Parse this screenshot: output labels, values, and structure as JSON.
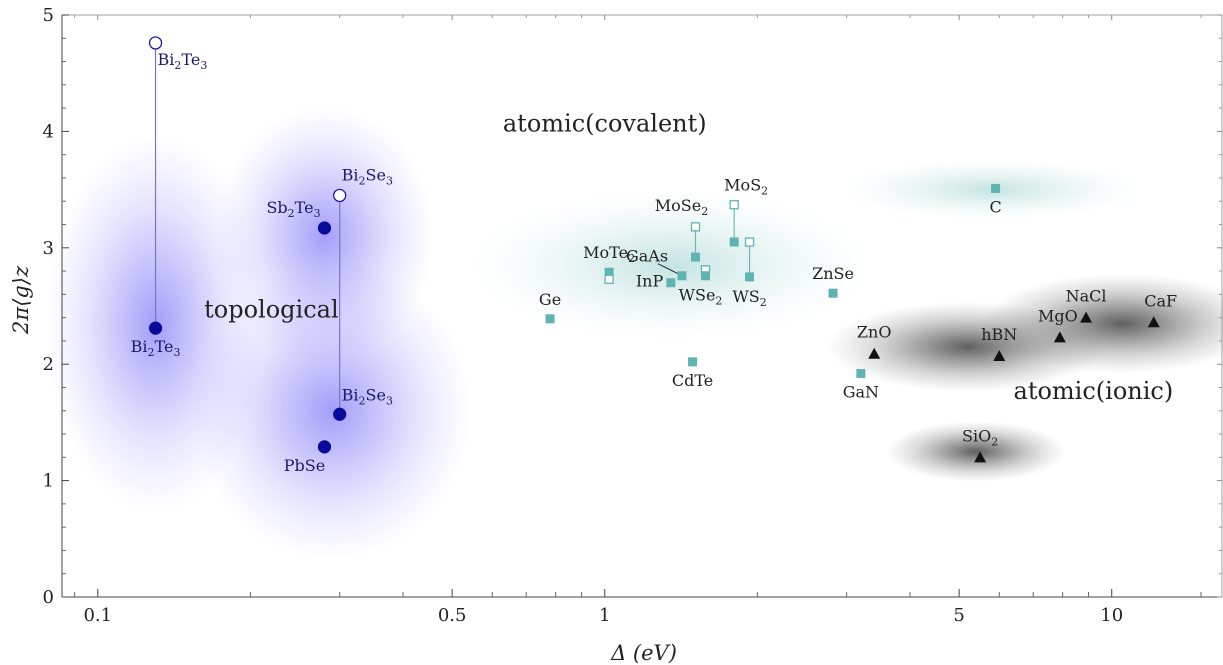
{
  "chart_data": {
    "type": "scatter",
    "xscale": "log",
    "xlim": [
      0.085,
      16.5
    ],
    "ylim": [
      0,
      5
    ],
    "xlabel": "Δ (eV)",
    "ylabel": "2π⟨g⟩z",
    "xticks": [
      {
        "value": 0.1,
        "label": "0.1"
      },
      {
        "value": 0.5,
        "label": "0.5"
      },
      {
        "value": 1,
        "label": "1"
      },
      {
        "value": 5,
        "label": "5"
      },
      {
        "value": 10,
        "label": "10"
      }
    ],
    "yticks": [
      0,
      1,
      2,
      3,
      4,
      5
    ],
    "regions": [
      {
        "label": "topological",
        "x": 0.22,
        "y": 2.4,
        "color": "#4a3df2"
      },
      {
        "label": "atomic(covalent)",
        "x": 1.0,
        "y": 4.0,
        "color": "#3da79c"
      },
      {
        "label": "atomic(ionic)",
        "x": 9.2,
        "y": 1.7,
        "color": "#222222"
      }
    ],
    "series": [
      {
        "marker": "circle",
        "color": "#0a0a9a",
        "points": [
          {
            "label": "Bi2Te3",
            "x": 0.13,
            "y": 4.76,
            "hollow": true
          },
          {
            "label": "Bi2Te3",
            "x": 0.13,
            "y": 2.31,
            "hollow": false
          },
          {
            "label": "Bi2Se3",
            "x": 0.3,
            "y": 3.45,
            "hollow": true
          },
          {
            "label": "Bi2Se3",
            "x": 0.3,
            "y": 1.57,
            "hollow": false
          },
          {
            "label": "Sb2Te3",
            "x": 0.28,
            "y": 3.17,
            "hollow": false
          },
          {
            "label": "PbSe",
            "x": 0.28,
            "y": 1.29,
            "hollow": false
          }
        ]
      },
      {
        "marker": "square",
        "color": "#5fb3b3",
        "points": [
          {
            "label": "Ge",
            "x": 0.78,
            "y": 2.39,
            "hollow": false
          },
          {
            "label": "MoTe2",
            "x": 1.02,
            "y": 2.79,
            "hollow": false
          },
          {
            "label": "MoTe2",
            "x": 1.02,
            "y": 2.73,
            "hollow": true
          },
          {
            "label": "InP",
            "x": 1.35,
            "y": 2.7,
            "hollow": false
          },
          {
            "label": "GaAs",
            "x": 1.42,
            "y": 2.76,
            "hollow": false
          },
          {
            "label": "MoSe2",
            "x": 1.51,
            "y": 3.18,
            "hollow": true
          },
          {
            "label": "MoSe2",
            "x": 1.51,
            "y": 2.92,
            "hollow": false
          },
          {
            "label": "WSe2",
            "x": 1.58,
            "y": 2.81,
            "hollow": true
          },
          {
            "label": "WSe2",
            "x": 1.58,
            "y": 2.76,
            "hollow": false
          },
          {
            "label": "MoS2",
            "x": 1.8,
            "y": 3.37,
            "hollow": true
          },
          {
            "label": "MoS2",
            "x": 1.8,
            "y": 3.05,
            "hollow": false
          },
          {
            "label": "WS2",
            "x": 1.93,
            "y": 3.05,
            "hollow": true
          },
          {
            "label": "WS2",
            "x": 1.93,
            "y": 2.75,
            "hollow": false
          },
          {
            "label": "CdTe",
            "x": 1.49,
            "y": 2.02,
            "hollow": false
          },
          {
            "label": "ZnSe",
            "x": 2.82,
            "y": 2.61,
            "hollow": false
          },
          {
            "label": "GaN",
            "x": 3.2,
            "y": 1.92,
            "hollow": false
          },
          {
            "label": "C",
            "x": 5.9,
            "y": 3.51,
            "hollow": false
          }
        ]
      },
      {
        "marker": "triangle",
        "color": "#111111",
        "points": [
          {
            "label": "ZnO",
            "x": 3.4,
            "y": 2.09
          },
          {
            "label": "hBN",
            "x": 6.0,
            "y": 2.07
          },
          {
            "label": "MgO",
            "x": 7.9,
            "y": 2.23
          },
          {
            "label": "NaCl",
            "x": 8.9,
            "y": 2.4
          },
          {
            "label": "CaF",
            "x": 12.1,
            "y": 2.36
          },
          {
            "label": "SiO2",
            "x": 5.5,
            "y": 1.2
          }
        ]
      }
    ]
  }
}
